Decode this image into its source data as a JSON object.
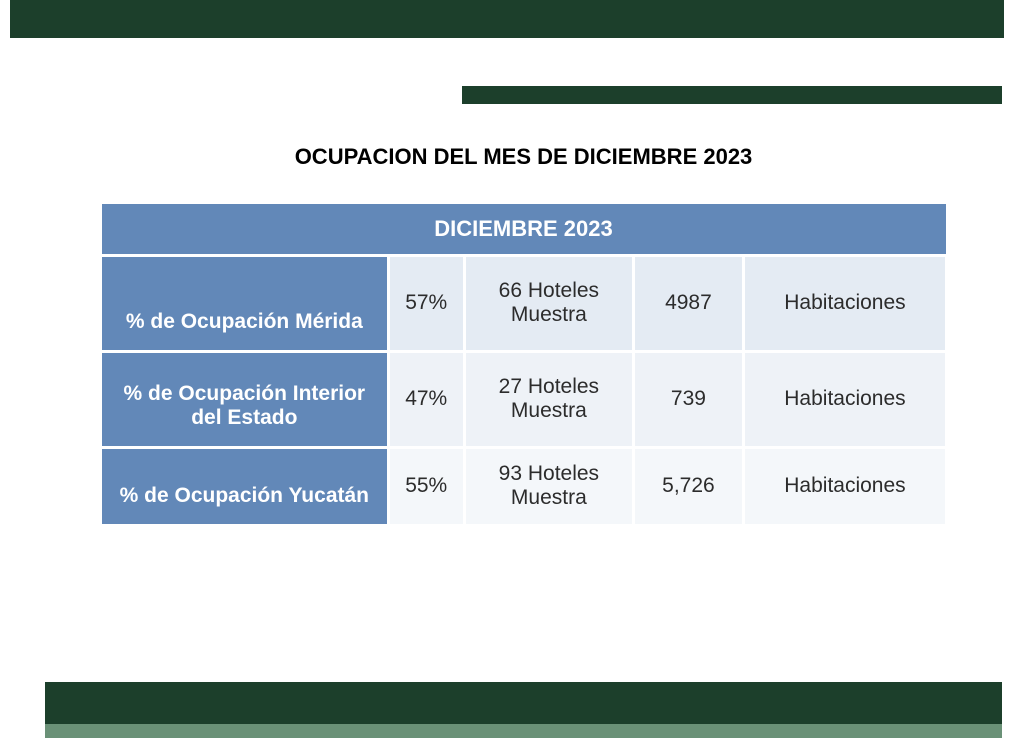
{
  "title": "OCUPACION DEL MES DE DICIEMBRE 2023",
  "table": {
    "type": "table",
    "header": "DICIEMBRE 2023",
    "background_color": "#ffffff",
    "header_bg": "#6288b8",
    "header_color": "#ffffff",
    "row_bg_colors": [
      "#e4ebf3",
      "#eef2f7",
      "#f4f7fa"
    ],
    "border_color": "#ffffff",
    "font_size": 21,
    "header_font_size": 22,
    "columns": [
      "label",
      "percent",
      "sample",
      "rooms",
      "rooms_unit"
    ],
    "column_widths_pct": [
      34,
      9,
      20,
      13,
      24
    ],
    "rows": [
      {
        "label": "% de Ocupación Mérida",
        "percent": "57%",
        "sample": "66 Hoteles Muestra",
        "rooms": "4987",
        "rooms_unit": "Habitaciones"
      },
      {
        "label": "% de Ocupación Interior del Estado",
        "percent": "47%",
        "sample": "27 Hoteles Muestra",
        "rooms": "739",
        "rooms_unit": "Habitaciones"
      },
      {
        "label": "% de Ocupación Yucatán",
        "percent": "55%",
        "sample": "93 Hoteles Muestra",
        "rooms": "5,726",
        "rooms_unit": "Habitaciones"
      }
    ]
  },
  "colors": {
    "brand_dark_green": "#1c3f2b",
    "brand_light_green": "#6a9177",
    "table_header_blue": "#6288b8",
    "text": "#2c2c2c",
    "watermark": "#9aa39d"
  }
}
